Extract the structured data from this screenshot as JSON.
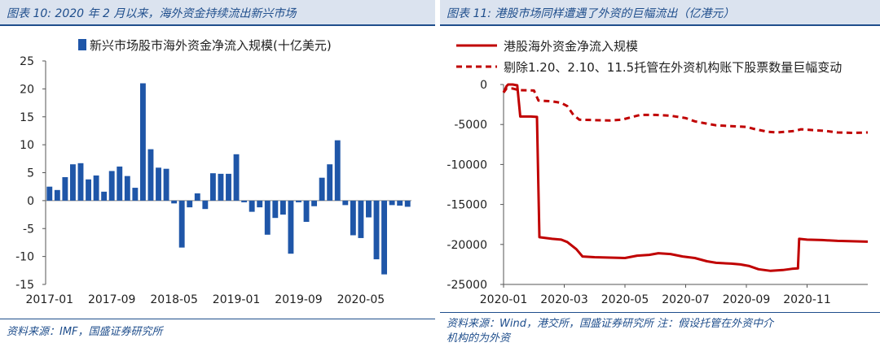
{
  "left": {
    "title": "图表 10:  2020 年 2 月以来，海外资金持续流出新兴市场",
    "source": "资料来源：IMF，国盛证券研究所",
    "chart_data": {
      "type": "bar",
      "legend": "新兴市场股市海外资金净流入规模(十亿美元)",
      "color": "#1f56a8",
      "ylim": [
        -15,
        25
      ],
      "yticks": [
        "25",
        "20",
        "15",
        "10",
        "5",
        "0",
        "-5",
        "-10",
        "-15"
      ],
      "yvalues": [
        25,
        20,
        15,
        10,
        5,
        0,
        -5,
        -10,
        -15
      ],
      "xticks": [
        "2017-01",
        "2017-09",
        "2018-05",
        "2019-01",
        "2019-09",
        "2020-05"
      ],
      "xtick_index": [
        0,
        8,
        16,
        24,
        32,
        40
      ],
      "values": [
        2.5,
        1.9,
        4.2,
        6.5,
        6.7,
        3.8,
        4.5,
        1.6,
        5.3,
        6.1,
        4.4,
        2.3,
        21.0,
        9.2,
        5.9,
        5.7,
        -0.5,
        -8.4,
        -1.2,
        1.3,
        -1.5,
        4.9,
        4.8,
        4.8,
        8.3,
        -0.3,
        -2.0,
        -1.2,
        -6.1,
        -3.1,
        -2.5,
        -9.5,
        -0.3,
        -3.8,
        -1.0,
        4.1,
        6.5,
        10.8,
        -0.8,
        -6.2,
        -6.7,
        -3.0,
        -10.5,
        -13.2,
        -0.8,
        -0.9,
        -1.1
      ]
    }
  },
  "right": {
    "title": "图表 11:  港股市场同样遭遇了外资的巨幅流出（亿港元）",
    "source_line1": "资料来源：Wind，港交所，国盛证券研究所      注：假设托管在外资中介",
    "source_line2": "机构的为外资",
    "chart_data": {
      "type": "line",
      "color": "#c00000",
      "ylim": [
        -25000,
        0
      ],
      "yticks": [
        "0",
        "-5000",
        "-10000",
        "-15000",
        "-20000",
        "-25000"
      ],
      "yvalues": [
        0,
        -5000,
        -10000,
        -15000,
        -20000,
        -25000
      ],
      "xticks": [
        "2020-01",
        "2020-03",
        "2020-05",
        "2020-07",
        "2020-09",
        "2020-11"
      ],
      "xtick_pos": [
        0,
        2,
        4,
        6,
        8,
        10
      ],
      "xmax": 12,
      "series": [
        {
          "name": "港股海外资金净流入规模",
          "style": "solid",
          "points": [
            [
              0,
              -1000
            ],
            [
              0.1,
              -200
            ],
            [
              0.15,
              0
            ],
            [
              0.3,
              0
            ],
            [
              0.45,
              -100
            ],
            [
              0.55,
              -4000
            ],
            [
              0.9,
              -4000
            ],
            [
              1.1,
              -4050
            ],
            [
              1.18,
              -19100
            ],
            [
              1.6,
              -19300
            ],
            [
              1.9,
              -19400
            ],
            [
              2.1,
              -19700
            ],
            [
              2.4,
              -20600
            ],
            [
              2.6,
              -21500
            ],
            [
              3.0,
              -21600
            ],
            [
              3.5,
              -21650
            ],
            [
              4.0,
              -21700
            ],
            [
              4.4,
              -21400
            ],
            [
              4.8,
              -21300
            ],
            [
              5.1,
              -21100
            ],
            [
              5.5,
              -21200
            ],
            [
              5.9,
              -21500
            ],
            [
              6.3,
              -21700
            ],
            [
              6.7,
              -22100
            ],
            [
              7.0,
              -22300
            ],
            [
              7.5,
              -22400
            ],
            [
              7.8,
              -22500
            ],
            [
              8.1,
              -22700
            ],
            [
              8.4,
              -23100
            ],
            [
              8.8,
              -23300
            ],
            [
              9.2,
              -23200
            ],
            [
              9.5,
              -23050
            ],
            [
              9.7,
              -23000
            ],
            [
              9.74,
              -19300
            ],
            [
              10.0,
              -19400
            ],
            [
              10.5,
              -19450
            ],
            [
              11.0,
              -19550
            ],
            [
              11.5,
              -19600
            ],
            [
              12.0,
              -19650
            ]
          ]
        },
        {
          "name": "剔除1.20、2.10、11.5托管在外资机构账下股票数量巨幅变动",
          "style": "dashed",
          "points": [
            [
              0,
              -1000
            ],
            [
              0.1,
              -500
            ],
            [
              0.3,
              -500
            ],
            [
              0.5,
              -700
            ],
            [
              1.0,
              -750
            ],
            [
              1.15,
              -2000
            ],
            [
              1.6,
              -2100
            ],
            [
              1.9,
              -2300
            ],
            [
              2.1,
              -2700
            ],
            [
              2.3,
              -3800
            ],
            [
              2.5,
              -4400
            ],
            [
              3.0,
              -4450
            ],
            [
              3.5,
              -4500
            ],
            [
              3.9,
              -4400
            ],
            [
              4.2,
              -4100
            ],
            [
              4.5,
              -3800
            ],
            [
              5.0,
              -3800
            ],
            [
              5.5,
              -3900
            ],
            [
              6.0,
              -4200
            ],
            [
              6.3,
              -4600
            ],
            [
              6.7,
              -4900
            ],
            [
              7.0,
              -5100
            ],
            [
              7.5,
              -5200
            ],
            [
              8.0,
              -5300
            ],
            [
              8.3,
              -5600
            ],
            [
              8.7,
              -5900
            ],
            [
              9.0,
              -6000
            ],
            [
              9.3,
              -5900
            ],
            [
              9.6,
              -5800
            ],
            [
              9.8,
              -5600
            ],
            [
              10.2,
              -5700
            ],
            [
              10.6,
              -5800
            ],
            [
              11.0,
              -6000
            ],
            [
              11.5,
              -6050
            ],
            [
              12.0,
              -6000
            ]
          ]
        }
      ]
    }
  }
}
